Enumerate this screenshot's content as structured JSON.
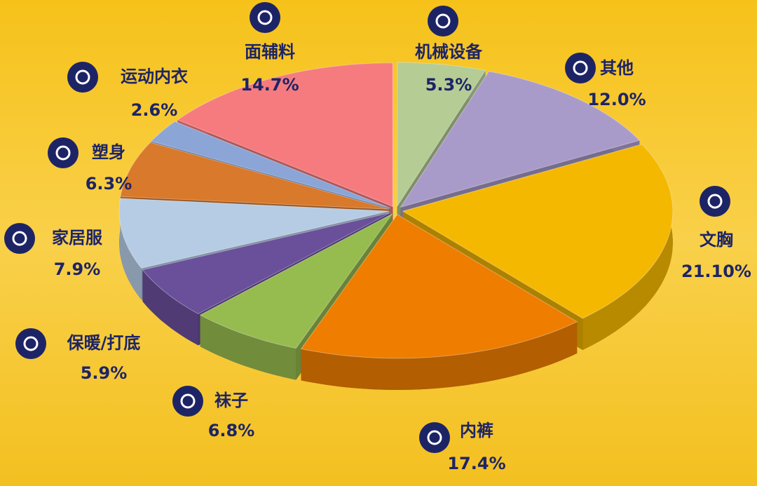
{
  "chart_data": {
    "type": "pie",
    "categories": [
      "机械设备",
      "其他",
      "文胸",
      "内裤",
      "袜子",
      "保暖/打底",
      "家居服",
      "塑身",
      "运动内衣",
      "面辅料"
    ],
    "values": [
      5.3,
      12.0,
      21.1,
      17.4,
      6.8,
      5.9,
      7.9,
      6.3,
      2.6,
      14.7
    ],
    "value_labels": [
      "5.3%",
      "12.0%",
      "21.10%",
      "17.4%",
      "6.8%",
      "5.9%",
      "7.9%",
      "6.3%",
      "2.6%",
      "14.7%"
    ],
    "colors": [
      "#b5cc95",
      "#a99bc9",
      "#f5b800",
      "#ee7d00",
      "#96bb4f",
      "#6a4f9a",
      "#b6cce5",
      "#d9792b",
      "#8aa5d6",
      "#f67b7f"
    ]
  }
}
